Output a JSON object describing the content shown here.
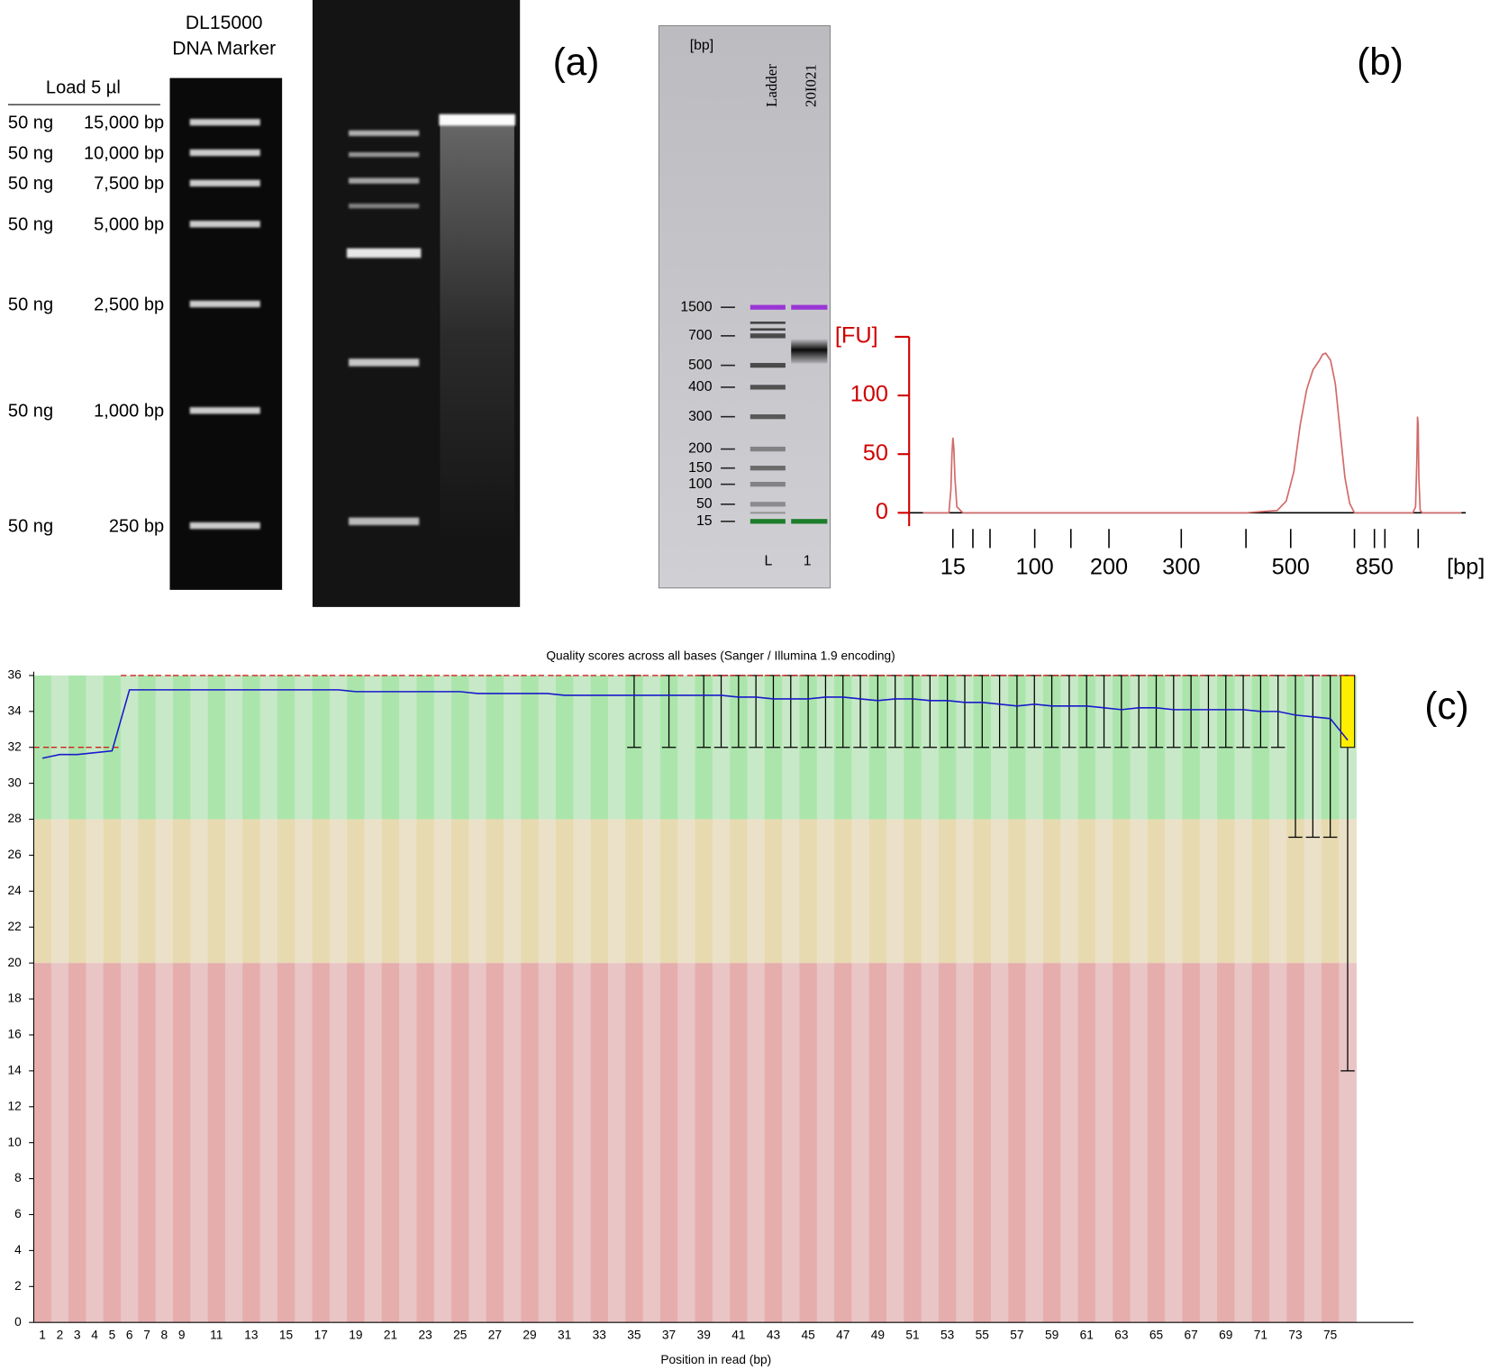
{
  "panel_a": {
    "label": "(a)",
    "marker_name": "DL15000",
    "marker_type": "DNA Marker",
    "load": "Load 5 µl",
    "rows": [
      {
        "amount": "50 ng",
        "size": "15,000 bp"
      },
      {
        "amount": "50 ng",
        "size": "10,000 bp"
      },
      {
        "amount": "50 ng",
        "size": "7,500 bp"
      },
      {
        "amount": "50 ng",
        "size": "5,000 bp"
      },
      {
        "amount": "50 ng",
        "size": "2,500 bp"
      },
      {
        "amount": "50 ng",
        "size": "1,000 bp"
      },
      {
        "amount": "50 ng",
        "size": "250 bp"
      }
    ]
  },
  "panel_b_label": "(b)",
  "panel_b_gel": {
    "unit": "[bp]",
    "sizes": [
      1500,
      700,
      500,
      400,
      300,
      200,
      150,
      100,
      50,
      15
    ],
    "lanes": [
      {
        "name": "Ladder",
        "id": "L"
      },
      {
        "name": "20I021",
        "id": "1"
      }
    ],
    "upper_marker_color": "#9a35d6",
    "lower_marker_color": "#1d7d2b"
  },
  "panel_c_label": "(c)",
  "chart_data": [
    {
      "type": "line",
      "y_label": "[FU]",
      "x_label": "[bp]",
      "color": "#d26a6a",
      "axis_color": "#d00000",
      "x": [
        0,
        13,
        14,
        14.5,
        15,
        15.5,
        16,
        17,
        20,
        400,
        470,
        490,
        510,
        530,
        550,
        570,
        590,
        600,
        610,
        625,
        640,
        655,
        670,
        685,
        700,
        1300,
        1420,
        1460,
        1480,
        1490,
        1500,
        1510,
        1530,
        1560,
        2150
      ],
      "values": [
        0,
        0,
        20,
        50,
        64,
        55,
        30,
        5,
        0,
        0,
        2,
        10,
        35,
        75,
        105,
        122,
        130,
        135,
        136,
        130,
        110,
        70,
        30,
        8,
        0,
        0,
        0,
        5,
        45,
        82,
        75,
        30,
        2,
        0,
        0
      ],
      "ylim": [
        0,
        150
      ],
      "yticks": [
        0,
        50,
        100
      ],
      "xticks": [
        15,
        {
          "value": 25
        },
        {
          "value": 50
        },
        100,
        {
          "value": 150
        },
        200,
        300,
        {
          "value": 400
        },
        500,
        {
          "value": 700
        },
        850,
        {
          "value": 1000
        },
        {
          "value": 1500
        }
      ]
    },
    {
      "type": "box",
      "title": "Quality scores across all bases (Sanger / Illumina 1.9 encoding)",
      "x_label": "Position in read (bp)",
      "categories": [
        1,
        2,
        3,
        4,
        5,
        6,
        7,
        8,
        9,
        null,
        11,
        null,
        13,
        null,
        15,
        null,
        17,
        null,
        19,
        null,
        21,
        null,
        23,
        null,
        25,
        null,
        27,
        null,
        29,
        null,
        31,
        null,
        33,
        null,
        35,
        null,
        37,
        null,
        39,
        null,
        41,
        null,
        43,
        null,
        45,
        null,
        47,
        null,
        49,
        null,
        51,
        null,
        53,
        null,
        55,
        null,
        57,
        null,
        59,
        null,
        61,
        null,
        63,
        null,
        65,
        null,
        67,
        null,
        69,
        null,
        71,
        null,
        73,
        null,
        75,
        null
      ],
      "ylim": [
        0,
        36
      ],
      "yticks": [
        0,
        2,
        4,
        6,
        8,
        10,
        12,
        14,
        16,
        18,
        20,
        22,
        24,
        26,
        28,
        30,
        32,
        34,
        36
      ],
      "mean": [
        31.4,
        31.6,
        31.6,
        31.7,
        31.8,
        35.2,
        35.2,
        35.2,
        35.2,
        35.2,
        35.2,
        35.2,
        35.2,
        35.2,
        35.2,
        35.2,
        35.2,
        35.2,
        35.1,
        35.1,
        35.1,
        35.1,
        35.1,
        35.1,
        35.1,
        35.0,
        35.0,
        35.0,
        35.0,
        35.0,
        34.9,
        34.9,
        34.9,
        34.9,
        34.9,
        34.9,
        34.9,
        34.9,
        34.9,
        34.9,
        34.8,
        34.8,
        34.7,
        34.7,
        34.7,
        34.8,
        34.8,
        34.7,
        34.6,
        34.7,
        34.7,
        34.6,
        34.6,
        34.5,
        34.5,
        34.4,
        34.3,
        34.4,
        34.3,
        34.3,
        34.3,
        34.2,
        34.1,
        34.2,
        34.2,
        34.1,
        34.1,
        34.1,
        34.1,
        34.1,
        34.0,
        34.0,
        33.8,
        33.7,
        33.6,
        32.4
      ],
      "median": [
        32,
        32,
        32,
        32,
        32,
        36,
        36,
        36,
        36,
        36,
        36,
        36,
        36,
        36,
        36,
        36,
        36,
        36,
        36,
        36,
        36,
        36,
        36,
        36,
        36,
        36,
        36,
        36,
        36,
        36,
        36,
        36,
        36,
        36,
        36,
        36,
        36,
        36,
        36,
        36,
        36,
        36,
        36,
        36,
        36,
        36,
        36,
        36,
        36,
        36,
        36,
        36,
        36,
        36,
        36,
        36,
        36,
        36,
        36,
        36,
        36,
        36,
        36,
        36,
        36,
        36,
        36,
        36,
        36,
        36,
        36,
        36,
        36,
        36,
        36,
        36
      ],
      "lower_quartile": [
        32,
        32,
        32,
        32,
        32,
        36,
        36,
        36,
        36,
        36,
        36,
        36,
        36,
        36,
        36,
        36,
        36,
        36,
        36,
        36,
        36,
        36,
        36,
        36,
        36,
        36,
        36,
        36,
        36,
        36,
        36,
        36,
        36,
        36,
        36,
        36,
        36,
        36,
        36,
        36,
        36,
        36,
        36,
        36,
        36,
        36,
        36,
        36,
        36,
        36,
        36,
        36,
        36,
        36,
        36,
        36,
        36,
        36,
        36,
        36,
        36,
        36,
        36,
        36,
        36,
        36,
        36,
        36,
        36,
        36,
        36,
        36,
        36,
        36,
        36,
        32
      ],
      "upper_quartile": [
        32,
        32,
        32,
        32,
        32,
        36,
        36,
        36,
        36,
        36,
        36,
        36,
        36,
        36,
        36,
        36,
        36,
        36,
        36,
        36,
        36,
        36,
        36,
        36,
        36,
        36,
        36,
        36,
        36,
        36,
        36,
        36,
        36,
        36,
        36,
        36,
        36,
        36,
        36,
        36,
        36,
        36,
        36,
        36,
        36,
        36,
        36,
        36,
        36,
        36,
        36,
        36,
        36,
        36,
        36,
        36,
        36,
        36,
        36,
        36,
        36,
        36,
        36,
        36,
        36,
        36,
        36,
        36,
        36,
        36,
        36,
        36,
        36,
        36,
        36,
        36
      ],
      "p10": [
        32,
        32,
        32,
        32,
        32,
        36,
        36,
        36,
        36,
        36,
        36,
        36,
        36,
        36,
        36,
        36,
        36,
        36,
        36,
        36,
        36,
        36,
        36,
        36,
        36,
        36,
        36,
        36,
        36,
        36,
        36,
        36,
        36,
        36,
        32,
        36,
        32,
        36,
        32,
        32,
        32,
        32,
        32,
        32,
        32,
        32,
        32,
        32,
        32,
        32,
        32,
        32,
        32,
        32,
        32,
        32,
        32,
        32,
        32,
        32,
        32,
        32,
        32,
        32,
        32,
        32,
        32,
        32,
        32,
        32,
        32,
        32,
        27,
        27,
        27,
        14
      ],
      "p90": [
        32,
        32,
        32,
        32,
        32,
        36,
        36,
        36,
        36,
        36,
        36,
        36,
        36,
        36,
        36,
        36,
        36,
        36,
        36,
        36,
        36,
        36,
        36,
        36,
        36,
        36,
        36,
        36,
        36,
        36,
        36,
        36,
        36,
        36,
        36,
        36,
        36,
        36,
        36,
        36,
        36,
        36,
        36,
        36,
        36,
        36,
        36,
        36,
        36,
        36,
        36,
        36,
        36,
        36,
        36,
        36,
        36,
        36,
        36,
        36,
        36,
        36,
        36,
        36,
        36,
        36,
        36,
        36,
        36,
        36,
        36,
        36,
        36,
        36,
        36,
        36
      ],
      "mean_color": "#1a1acc",
      "median_color": "#d02020",
      "box_color": "#ffee00",
      "bands": [
        {
          "from": 28,
          "to": 36,
          "colors": [
            "#abe5ab",
            "#c7e9c7"
          ]
        },
        {
          "from": 20,
          "to": 28,
          "colors": [
            "#e7dab0",
            "#ebe1c8"
          ]
        },
        {
          "from": 0,
          "to": 20,
          "colors": [
            "#e6adad",
            "#e9c5c5"
          ]
        }
      ]
    }
  ]
}
